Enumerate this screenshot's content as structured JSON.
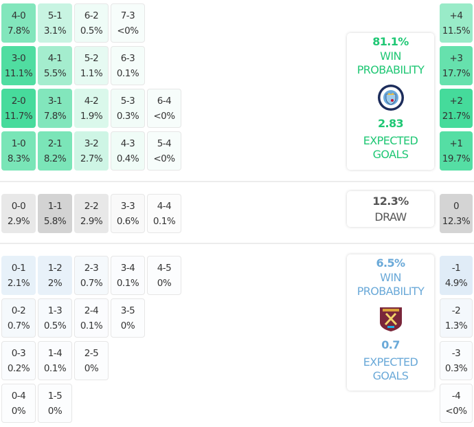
{
  "colors": {
    "home": "#2ed68f",
    "away": "#a9cbe8",
    "draw": "#cfcfcf",
    "home_text": "#1fc774",
    "away_text": "#6aa9d8",
    "draw_text": "#555555"
  },
  "home_grid": [
    [
      {
        "score": "4-0",
        "pct": "7.8%",
        "v": 7.8
      },
      {
        "score": "5-1",
        "pct": "3.1%",
        "v": 3.1
      },
      {
        "score": "6-2",
        "pct": "0.5%",
        "v": 0.5
      },
      {
        "score": "7-3",
        "pct": "<0%",
        "v": 0
      }
    ],
    [
      {
        "score": "3-0",
        "pct": "11.1%",
        "v": 11.1
      },
      {
        "score": "4-1",
        "pct": "5.5%",
        "v": 5.5
      },
      {
        "score": "5-2",
        "pct": "1.1%",
        "v": 1.1
      },
      {
        "score": "6-3",
        "pct": "0.1%",
        "v": 0.1
      }
    ],
    [
      {
        "score": "2-0",
        "pct": "11.7%",
        "v": 11.7
      },
      {
        "score": "3-1",
        "pct": "7.8%",
        "v": 7.8
      },
      {
        "score": "4-2",
        "pct": "1.9%",
        "v": 1.9
      },
      {
        "score": "5-3",
        "pct": "0.3%",
        "v": 0.3
      },
      {
        "score": "6-4",
        "pct": "<0%",
        "v": 0
      }
    ],
    [
      {
        "score": "1-0",
        "pct": "8.3%",
        "v": 8.3
      },
      {
        "score": "2-1",
        "pct": "8.2%",
        "v": 8.2
      },
      {
        "score": "3-2",
        "pct": "2.7%",
        "v": 2.7
      },
      {
        "score": "4-3",
        "pct": "0.4%",
        "v": 0.4
      },
      {
        "score": "5-4",
        "pct": "<0%",
        "v": 0
      }
    ]
  ],
  "draw_grid": [
    [
      {
        "score": "0-0",
        "pct": "2.9%",
        "v": 2.9
      },
      {
        "score": "1-1",
        "pct": "5.8%",
        "v": 5.8
      },
      {
        "score": "2-2",
        "pct": "2.9%",
        "v": 2.9
      },
      {
        "score": "3-3",
        "pct": "0.6%",
        "v": 0.6
      },
      {
        "score": "4-4",
        "pct": "0.1%",
        "v": 0.1
      }
    ]
  ],
  "away_grid": [
    [
      {
        "score": "0-1",
        "pct": "2.1%",
        "v": 2.1
      },
      {
        "score": "1-2",
        "pct": "2%",
        "v": 2
      },
      {
        "score": "2-3",
        "pct": "0.7%",
        "v": 0.7
      },
      {
        "score": "3-4",
        "pct": "0.1%",
        "v": 0.1
      },
      {
        "score": "4-5",
        "pct": "0%",
        "v": 0
      }
    ],
    [
      {
        "score": "0-2",
        "pct": "0.7%",
        "v": 0.7
      },
      {
        "score": "1-3",
        "pct": "0.5%",
        "v": 0.5
      },
      {
        "score": "2-4",
        "pct": "0.1%",
        "v": 0.1
      },
      {
        "score": "3-5",
        "pct": "0%",
        "v": 0
      }
    ],
    [
      {
        "score": "0-3",
        "pct": "0.2%",
        "v": 0.2
      },
      {
        "score": "1-4",
        "pct": "0.1%",
        "v": 0.1
      },
      {
        "score": "2-5",
        "pct": "0%",
        "v": 0
      }
    ],
    [
      {
        "score": "0-4",
        "pct": "0%",
        "v": 0
      },
      {
        "score": "1-5",
        "pct": "0%",
        "v": 0
      }
    ]
  ],
  "home_margins": [
    {
      "label": "+4",
      "pct": "11.5%",
      "v": 11.5
    },
    {
      "label": "+3",
      "pct": "17.7%",
      "v": 17.7
    },
    {
      "label": "+2",
      "pct": "21.7%",
      "v": 21.7
    },
    {
      "label": "+1",
      "pct": "19.7%",
      "v": 19.7
    }
  ],
  "draw_margin": [
    {
      "label": "0",
      "pct": "12.3%",
      "v": 12.3
    }
  ],
  "away_margins": [
    {
      "label": "-1",
      "pct": "4.9%",
      "v": 4.9
    },
    {
      "label": "-2",
      "pct": "1.3%",
      "v": 1.3
    },
    {
      "label": "-3",
      "pct": "0.3%",
      "v": 0.3
    },
    {
      "label": "-4",
      "pct": "<0%",
      "v": 0
    }
  ],
  "home_card": {
    "win_pct": "81.1%",
    "win_label_1": "WIN",
    "win_label_2": "PROBABILITY",
    "crest": "manchester-city-crest",
    "xg": "2.83",
    "xg_label_1": "EXPECTED",
    "xg_label_2": "GOALS"
  },
  "draw_card": {
    "pct": "12.3%",
    "label": "DRAW"
  },
  "away_card": {
    "win_pct": "6.5%",
    "win_label_1": "WIN",
    "win_label_2": "PROBABILITY",
    "crest": "west-ham-united-crest",
    "xg": "0.7",
    "xg_label_1": "EXPECTED",
    "xg_label_2": "GOALS"
  }
}
